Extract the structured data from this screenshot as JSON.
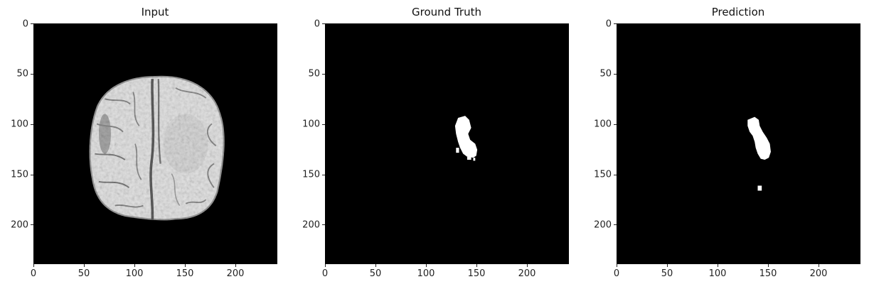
{
  "figure": {
    "panels": [
      {
        "title": "Input",
        "image": "brain-mri-axial-slice"
      },
      {
        "title": "Ground Truth",
        "image": "tumor-segmentation-mask"
      },
      {
        "title": "Prediction",
        "image": "predicted-segmentation-mask"
      }
    ],
    "x_ticks": [
      "0",
      "50",
      "100",
      "150",
      "200"
    ],
    "y_ticks": [
      "0",
      "50",
      "100",
      "150",
      "200"
    ],
    "axis_extent": [
      0,
      240
    ]
  },
  "colors": {
    "background": "#000000",
    "mask": "#ffffff",
    "tissue_light": "#e6e6e6",
    "tissue_dark": "#6a6a6a"
  }
}
